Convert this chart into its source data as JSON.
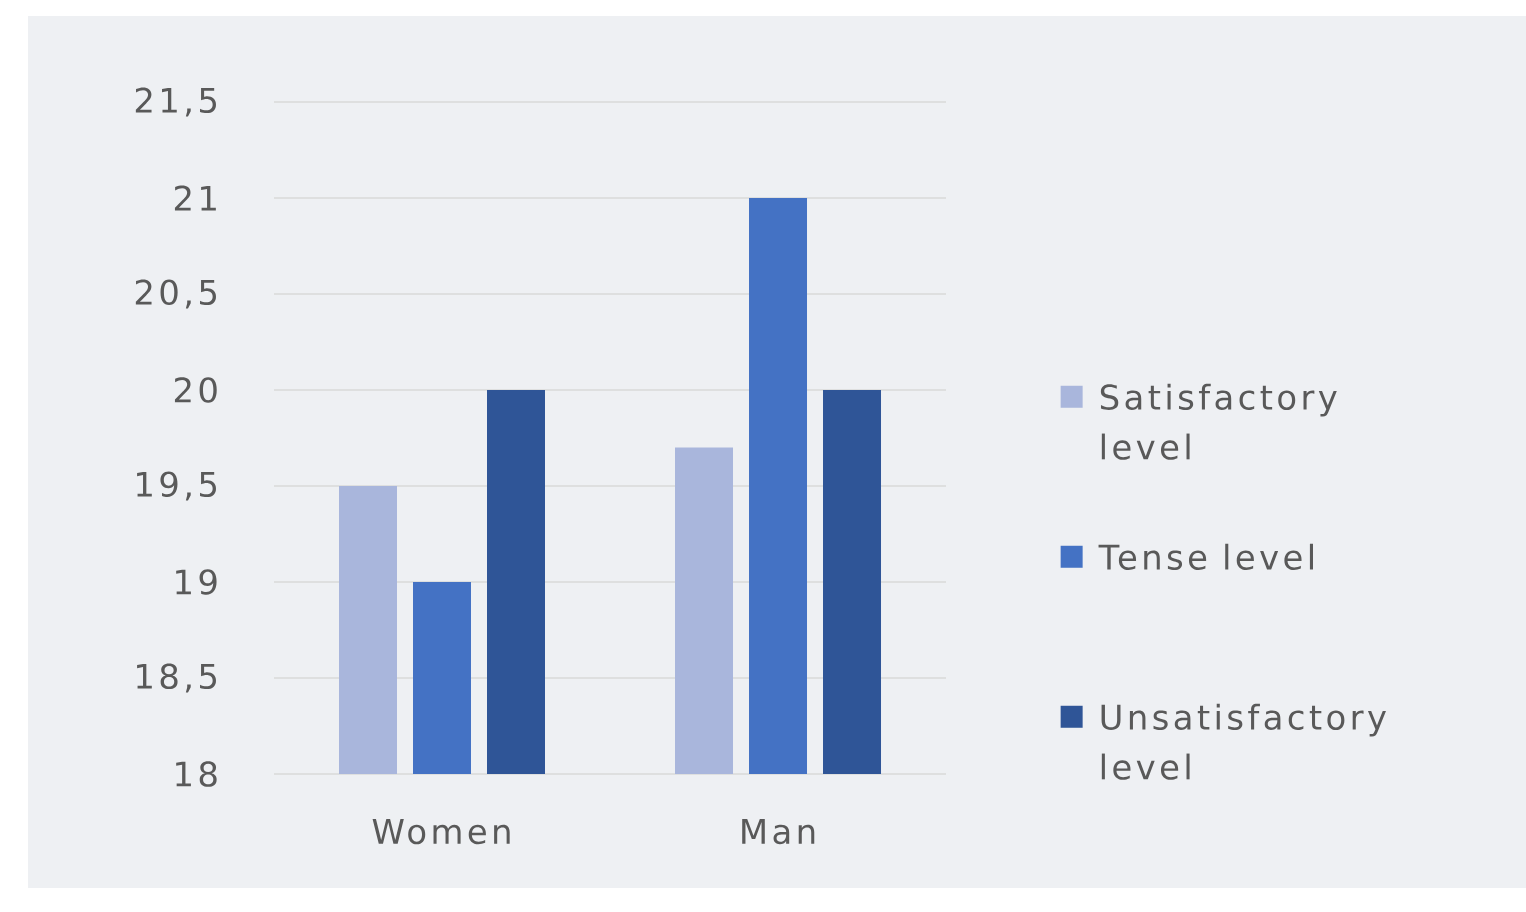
{
  "chart_data": {
    "type": "bar",
    "categories": [
      "Women",
      "Man"
    ],
    "series": [
      {
        "name": "Satisfactory level",
        "color": "#a9b6dc",
        "values": [
          19.5,
          19.7
        ]
      },
      {
        "name": "Tense level",
        "color": "#4472c4",
        "values": [
          19,
          21
        ]
      },
      {
        "name": "Unsatisfactory level",
        "color": "#2f5597",
        "values": [
          20,
          20
        ]
      }
    ],
    "ylim": [
      18,
      21.5
    ],
    "yticks": [
      18,
      {
        "value": 18.5,
        "label": "18,5"
      },
      19,
      {
        "value": 19.5,
        "label": "19,5"
      },
      20,
      {
        "value": 20.5,
        "label": "20,5"
      },
      21,
      {
        "value": 21.5,
        "label": "21,5"
      }
    ],
    "grid": "y",
    "legend": "right"
  }
}
